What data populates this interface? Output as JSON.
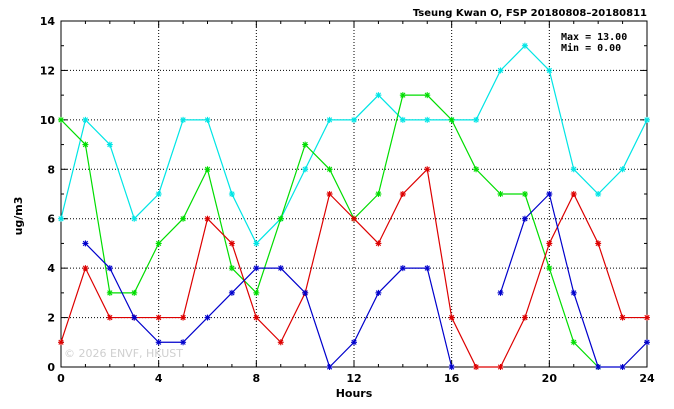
{
  "chart_data": {
    "type": "line",
    "title": "Tseung Kwan O, FSP 20180808–20180811",
    "xlabel": "Hours",
    "ylabel": "ug/m3",
    "xlim": [
      0,
      24
    ],
    "ylim": [
      0,
      14
    ],
    "x_ticks": [
      0,
      4,
      8,
      12,
      16,
      20,
      24
    ],
    "y_ticks": [
      0,
      2,
      4,
      6,
      8,
      10,
      12,
      14
    ],
    "grid": true,
    "stats": {
      "max_label": "Max = 13.00",
      "min_label": "Min =  0.00"
    },
    "watermark": "© 2026  ENVF, HKUST",
    "x": [
      0,
      1,
      2,
      3,
      4,
      5,
      6,
      7,
      8,
      9,
      10,
      11,
      12,
      13,
      14,
      15,
      16,
      17,
      18,
      19,
      20,
      21,
      22,
      23,
      24
    ],
    "series": [
      {
        "color": "#00e5e5",
        "values": [
          6,
          10,
          9,
          6,
          7,
          10,
          10,
          7,
          5,
          6,
          8,
          10,
          10,
          11,
          10,
          10,
          10,
          10,
          12,
          13,
          12,
          8,
          7,
          8,
          10
        ]
      },
      {
        "color": "#00dd00",
        "values": [
          10,
          9,
          3,
          3,
          5,
          6,
          8,
          4,
          3,
          6,
          9,
          8,
          6,
          7,
          11,
          11,
          10,
          8,
          7,
          7,
          4,
          1,
          0,
          null,
          null
        ]
      },
      {
        "color": "#dd0000",
        "values": [
          1,
          4,
          2,
          2,
          2,
          2,
          6,
          5,
          2,
          1,
          3,
          7,
          6,
          5,
          7,
          8,
          2,
          0,
          0,
          2,
          5,
          7,
          5,
          2,
          2
        ]
      },
      {
        "color": "#0000cc",
        "values": [
          null,
          5,
          4,
          2,
          1,
          1,
          2,
          3,
          4,
          4,
          3,
          0,
          1,
          3,
          4,
          4,
          0,
          null,
          3,
          6,
          7,
          3,
          0,
          0,
          1
        ]
      }
    ]
  }
}
